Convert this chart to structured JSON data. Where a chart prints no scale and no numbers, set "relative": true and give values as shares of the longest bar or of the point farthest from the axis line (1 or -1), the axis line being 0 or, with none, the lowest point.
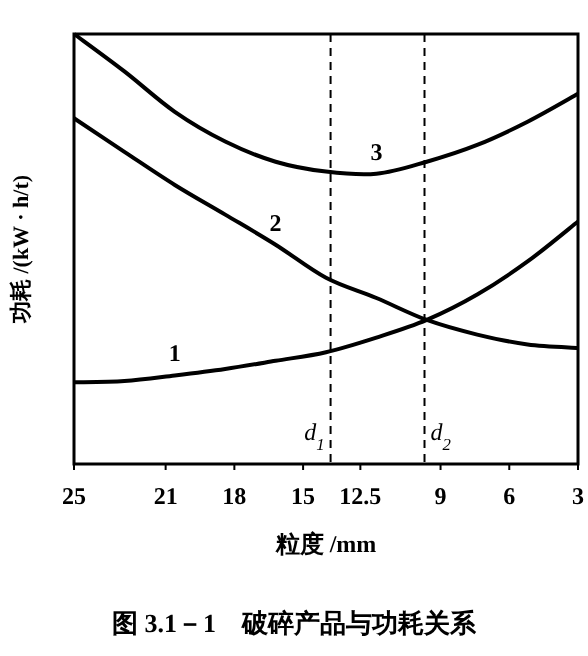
{
  "chart_data": {
    "type": "line",
    "relative": true,
    "title": "图 3.1－1　破碎产品与功耗关系",
    "xlabel": "粒度 /mm",
    "ylabel": "功耗 /(kW · h/t)",
    "x": [
      25,
      22.8,
      20.6,
      18.4,
      16.2,
      14,
      11.8,
      9.6,
      7.4,
      5.2,
      3
    ],
    "xlim": [
      25,
      3
    ],
    "xticks": [
      25,
      21,
      18,
      15,
      12.5,
      9,
      6,
      3
    ],
    "series": [
      {
        "name": "1",
        "color": "#000000",
        "values": [
          0.19,
          0.193,
          0.206,
          0.221,
          0.24,
          0.26,
          0.294,
          0.335,
          0.394,
          0.471,
          0.564
        ]
      },
      {
        "name": "2",
        "color": "#000000",
        "values": [
          0.804,
          0.726,
          0.649,
          0.58,
          0.51,
          0.433,
          0.386,
          0.335,
          0.301,
          0.278,
          0.27
        ]
      },
      {
        "name": "3",
        "color": "#000000",
        "values": [
          1,
          0.913,
          0.819,
          0.75,
          0.703,
          0.68,
          0.675,
          0.703,
          0.742,
          0.796,
          0.861
        ]
      }
    ],
    "ref_lines": [
      {
        "axis": "x",
        "value": 13.8,
        "label": "d$_{1}$",
        "line_style": "dashed"
      },
      {
        "axis": "x",
        "value": 9.7,
        "label": "d$_{2}$",
        "line_style": "dashed"
      }
    ],
    "grid": false,
    "legend": false,
    "marker": "none",
    "line_style": "solid"
  }
}
